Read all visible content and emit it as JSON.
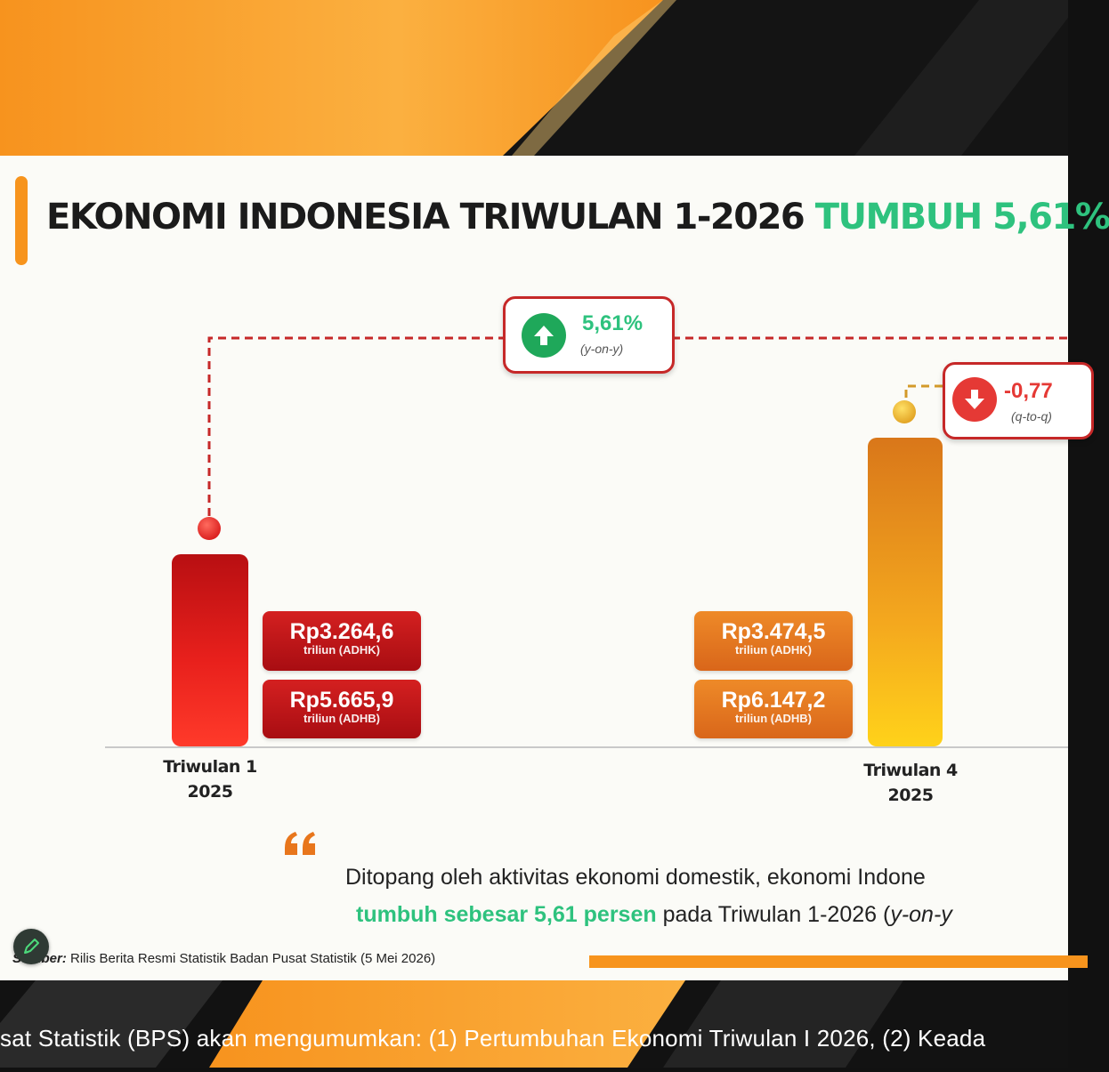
{
  "title": {
    "main": "EKONOMI INDONESIA TRIWULAN 1-2026",
    "highlight": "TUMBUH 5,61%"
  },
  "badges": {
    "yoy": {
      "value": "5,61%",
      "note": "(y-on-y)",
      "direction": "up",
      "icon": "arrow-up-icon",
      "color": "#1fa85a"
    },
    "qtq": {
      "value": "-0,77",
      "note": "(q-to-q)",
      "direction": "down",
      "icon": "arrow-down-icon",
      "color": "#e53935"
    }
  },
  "chart_data": {
    "type": "bar",
    "categories": [
      "Triwulan 1\n2025",
      "Triwulan 4\n2025"
    ],
    "category_lines": [
      [
        "Triwulan 1",
        "2025"
      ],
      [
        "Triwulan 4",
        "2025"
      ]
    ],
    "series": [
      {
        "values": [
          3264.6,
          3474.5
        ],
        "labels": [
          "Rp3.264,6",
          "Rp3.474,5"
        ],
        "unit": "triliun (ADHK)"
      },
      {
        "values": [
          5665.9,
          6147.2
        ],
        "labels": [
          "Rp5.665,9",
          "Rp6.147,2"
        ],
        "unit": "triliun (ADHB)"
      }
    ],
    "bar_colors": [
      "#e01e1e",
      "#f5a31c"
    ],
    "annotations": [
      "5,61% (y-on-y)",
      "-0,77 (q-to-q)"
    ],
    "grid": false
  },
  "quote": {
    "line1": "Ditopang oleh aktivitas ekonomi domestik, ekonomi Indone",
    "line2_highlight": "tumbuh sebesar 5,61 persen",
    "line2_rest": " pada Triwulan 1-2026 (",
    "line2_italic": "y-on-y"
  },
  "source": {
    "label": "Sumber:",
    "text": " Rilis Berita Resmi Statistik Badan Pusat Statistik (5 Mei 2026)"
  },
  "ticker": "sat Statistik (BPS) akan mengumumkan: (1) Pertumbuhan Ekonomi Triwulan I 2026, (2) Keada",
  "colors": {
    "accent_orange": "#f7941d",
    "growth_green": "#2ec27e",
    "badge_border": "#c62828"
  }
}
